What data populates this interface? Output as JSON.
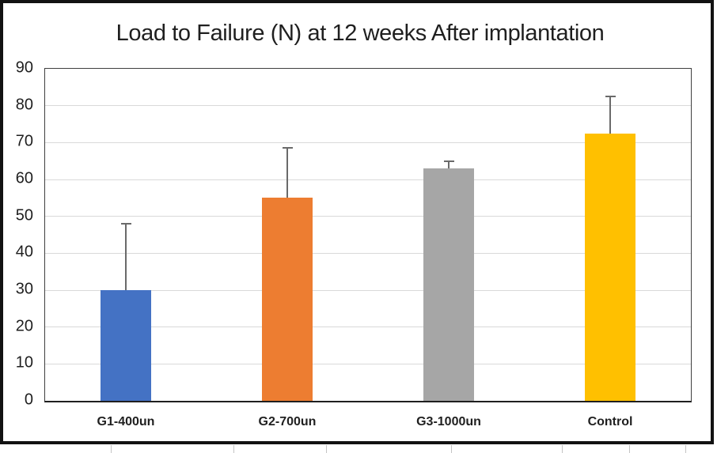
{
  "chart_data": {
    "type": "bar",
    "title": "Load to Failure (N) at 12 weeks After implantation",
    "categories": [
      "G1-400un",
      "G2-700un",
      "G3-1000un",
      "Control"
    ],
    "values": [
      30,
      55,
      63,
      72.5
    ],
    "error_plus": [
      18,
      13.5,
      2,
      10
    ],
    "bar_colors": [
      "#4472C4",
      "#ED7D31",
      "#A6A6A6",
      "#FFC000"
    ],
    "xlabel": "",
    "ylabel": "",
    "ylim": [
      0,
      90
    ],
    "ytick_interval": 10,
    "ytick_labels": [
      "0",
      "10",
      "20",
      "30",
      "40",
      "50",
      "60",
      "70",
      "80",
      "90"
    ],
    "grid": "horizontal",
    "legend": "none",
    "colors": {
      "gridline": "#d9d9d9",
      "error_bar": "#6a6a6a",
      "axis_line": "#1f1f1f",
      "text": "#1f1f1f",
      "strip_tick": "#c4c4c4"
    },
    "layout": {
      "bottom_edge_ticks_x": [
        140,
        295,
        412,
        570,
        710,
        795,
        866
      ]
    }
  }
}
